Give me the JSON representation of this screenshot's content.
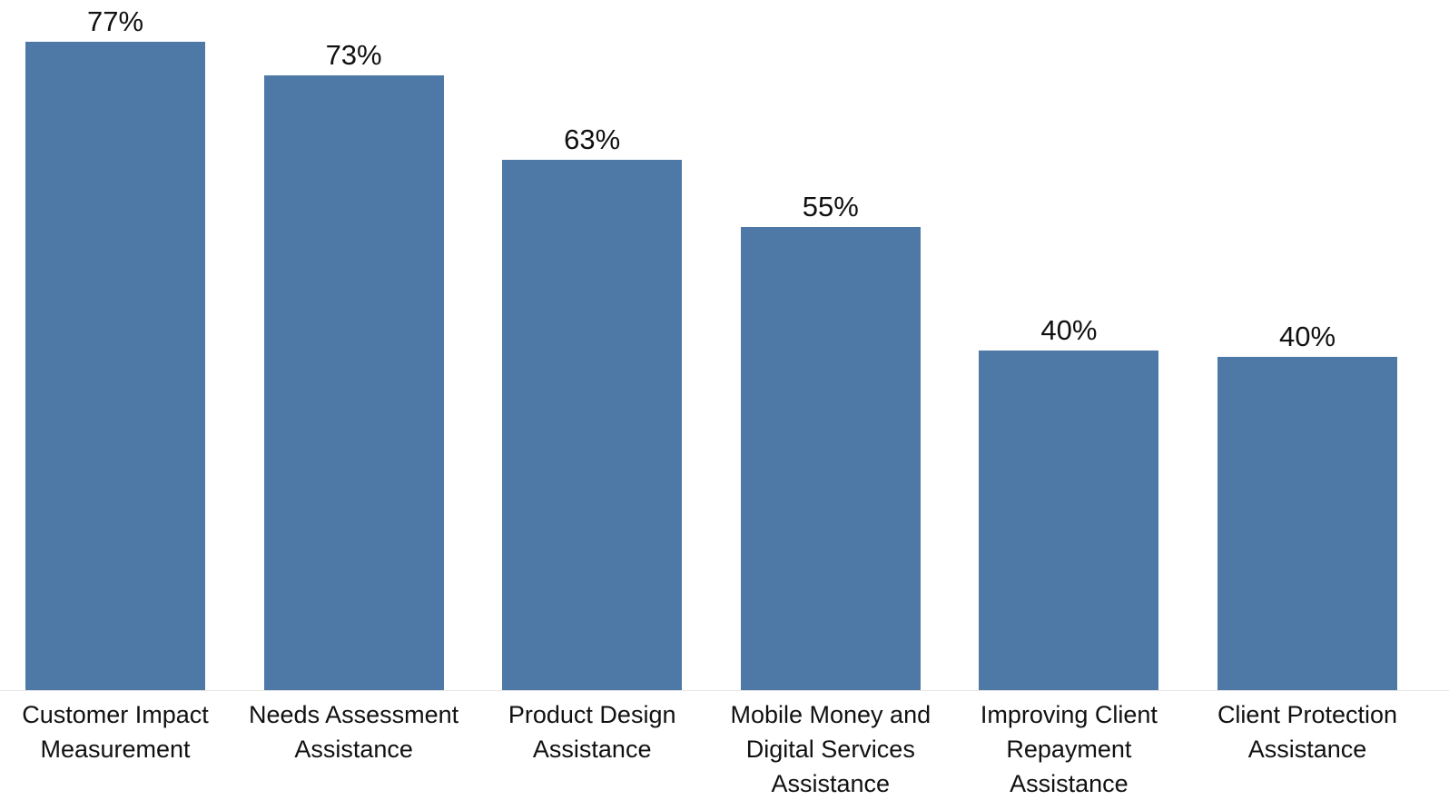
{
  "chart_data": {
    "type": "bar",
    "categories": [
      "Customer Impact Measurement",
      "Needs Assessment Assistance",
      "Product Design Assistance",
      "Mobile Money and Digital Services Assistance",
      "Improving Client Repayment Assistance",
      "Client Protection Assistance"
    ],
    "values": [
      77,
      73,
      63,
      55,
      40.3,
      39.6
    ],
    "value_labels": [
      "77%",
      "73%",
      "63%",
      "55%",
      "40%",
      "40%"
    ],
    "color": "#4e79a7"
  }
}
